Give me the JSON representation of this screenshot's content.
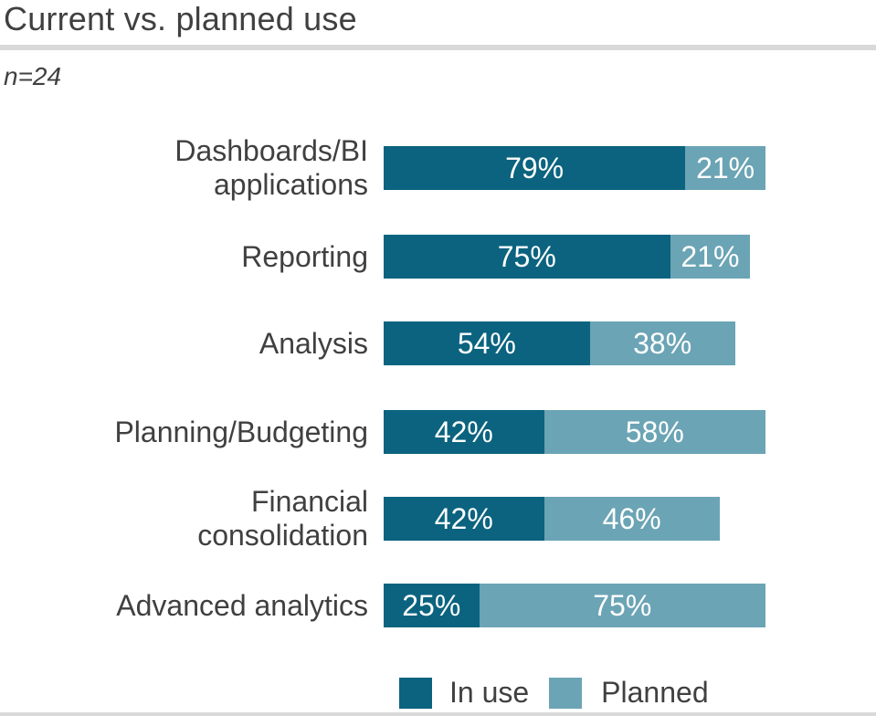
{
  "title": "Current vs. planned use",
  "note": "n=24",
  "colors": {
    "in_use": "#0b637f",
    "planned": "#6ba4b5",
    "text": "#404040",
    "rule": "#d9d9d9",
    "value_text": "#ffffff"
  },
  "chart_data": {
    "type": "bar",
    "orientation": "horizontal",
    "stacked": true,
    "unit": "%",
    "xlim": [
      0,
      100
    ],
    "grid": false,
    "value_labels": "inside-center",
    "legend_position": "bottom-right",
    "categories": [
      "Dashboards/BI\napplications",
      "Reporting",
      "Analysis",
      "Planning/Budgeting",
      "Financial\nconsolidation",
      "Advanced analytics"
    ],
    "series": [
      {
        "name": "In use",
        "values": [
          79,
          75,
          54,
          42,
          42,
          25
        ]
      },
      {
        "name": "Planned",
        "values": [
          21,
          21,
          38,
          58,
          46,
          75
        ]
      }
    ]
  }
}
